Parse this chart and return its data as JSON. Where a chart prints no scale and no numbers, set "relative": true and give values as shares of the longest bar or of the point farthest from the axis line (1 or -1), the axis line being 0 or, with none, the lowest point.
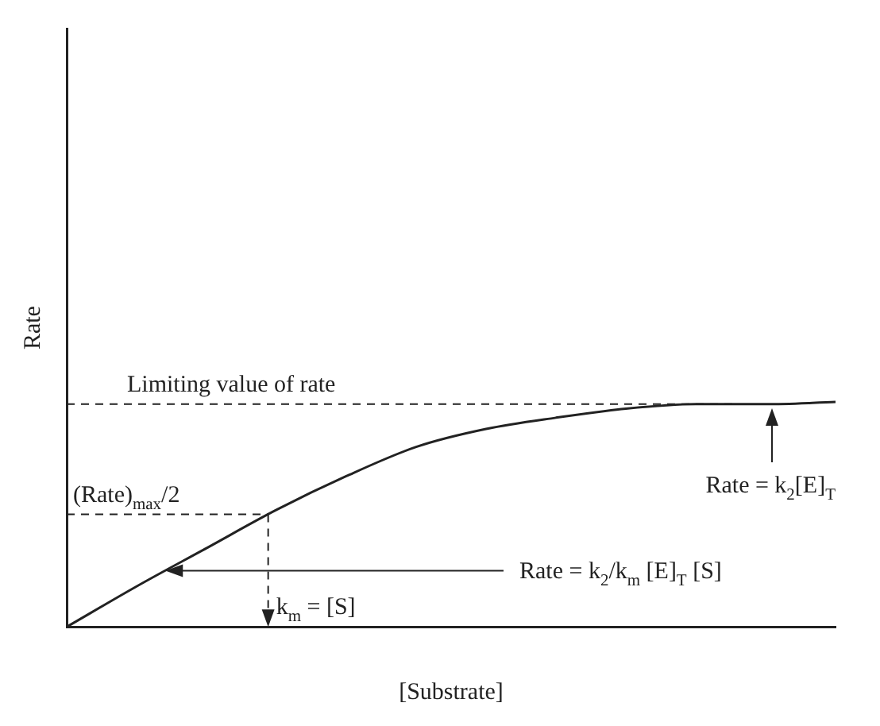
{
  "chart_data": {
    "type": "line",
    "relative": true,
    "xlabel": "[Substrate]",
    "ylabel": "Rate",
    "categories": [
      null,
      null,
      null,
      null,
      null,
      null,
      null,
      null,
      null,
      null,
      null,
      null
    ],
    "series": [
      {
        "color": "#222222",
        "values": [
          0,
          0.18,
          0.35,
          0.52,
          0.67,
          0.8,
          0.88,
          0.93,
          0.97,
          0.99,
          0.99,
          1
        ]
      }
    ],
    "ref_lines": [
      {
        "axis": "y",
        "value": 0.99,
        "label": "Limiting value of rate",
        "line_style": "dashed",
        "color": "#222222"
      },
      {
        "axis": "y",
        "value": 0.5,
        "label": "(Rate)$_{max}$/2",
        "line_style": "dashed",
        "color": "#222222"
      }
    ],
    "annotations": [
      "Rate = k$_{2}$[E]$_{T}$",
      "k$_{m}$ = [S]",
      "Rate = k$_{2}$/k$_{m}$ [E]$_{T}$ [S]"
    ],
    "grid": false,
    "legend": false,
    "marker": "none",
    "line_style": "solid"
  }
}
